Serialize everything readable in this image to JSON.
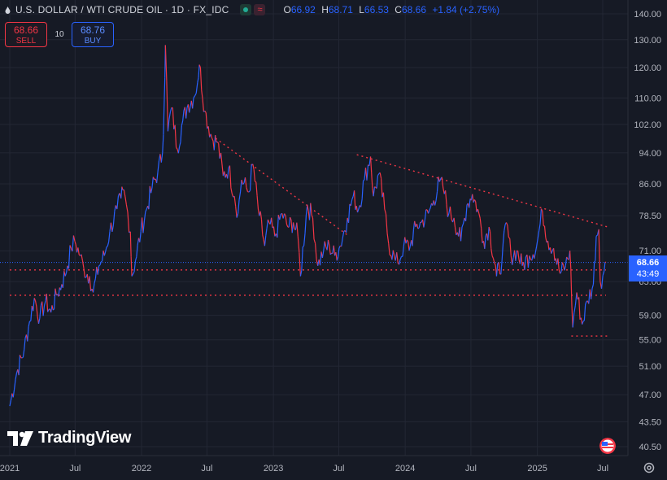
{
  "header": {
    "title": "U.S. DOLLAR / WTI CRUDE OIL · 1D · FX_IDC",
    "ohlc": {
      "o_key": "O",
      "o": "66.92",
      "h_key": "H",
      "h": "68.71",
      "l_key": "L",
      "l": "66.53",
      "c_key": "C",
      "c": "68.66",
      "change": "+1.84 (+2.75%)"
    },
    "status_icon": "market-open-dot-icon",
    "indicator_icon": "wave-icon"
  },
  "trade": {
    "sell_price": "68.66",
    "sell_label": "SELL",
    "spread": "10",
    "buy_price": "68.76",
    "buy_label": "BUY"
  },
  "price_badge": {
    "price": "68.66",
    "countdown": "43:49"
  },
  "logo_text": "TradingView",
  "colors": {
    "background": "#161a25",
    "up": "#2962ff",
    "down": "#f23645",
    "grid": "#232734",
    "axis_text": "#b2b5be",
    "trendline": "#f23645"
  },
  "chart_data": {
    "type": "candlestick-line",
    "y_axis": {
      "scale": "log",
      "ticks": [
        140.0,
        130.0,
        120.0,
        110.0,
        102.0,
        94.0,
        86.0,
        78.5,
        71.0,
        65.0,
        59.0,
        55.0,
        51.0,
        47.0,
        43.5,
        40.5
      ],
      "tick_labels": [
        "140.00",
        "130.00",
        "120.00",
        "110.00",
        "102.00",
        "94.00",
        "86.00",
        "78.50",
        "71.00",
        "65.00",
        "59.00",
        "55.00",
        "51.00",
        "47.00",
        "43.50",
        "40.50"
      ],
      "range": [
        39.5,
        142.0
      ]
    },
    "x_axis": {
      "range": [
        "2021-01-01",
        "2025-07-15"
      ],
      "ticks": [
        "2021-01-01",
        "2021-07-01",
        "2022-01-01",
        "2022-07-01",
        "2023-01-01",
        "2023-07-01",
        "2024-01-01",
        "2024-07-01",
        "2025-01-01",
        "2025-07-01"
      ],
      "tick_labels": [
        "2021",
        "Jul",
        "2022",
        "Jul",
        "2023",
        "Jul",
        "2024",
        "Jul",
        "2025",
        "Jul"
      ]
    },
    "grid": true,
    "series": [
      {
        "points": [
          [
            "2021-01-01",
            45.5
          ],
          [
            "2021-01-20",
            50.0
          ],
          [
            "2021-02-10",
            53.5
          ],
          [
            "2021-02-25",
            58.0
          ],
          [
            "2021-03-10",
            62.0
          ],
          [
            "2021-03-25",
            58.5
          ],
          [
            "2021-04-10",
            61.5
          ],
          [
            "2021-04-25",
            59.5
          ],
          [
            "2021-05-10",
            62.5
          ],
          [
            "2021-05-25",
            64.5
          ],
          [
            "2021-06-10",
            68.0
          ],
          [
            "2021-06-20",
            71.5
          ],
          [
            "2021-06-30",
            73.0
          ],
          [
            "2021-07-15",
            70.0
          ],
          [
            "2021-07-25",
            67.5
          ],
          [
            "2021-08-10",
            66.0
          ],
          [
            "2021-08-20",
            63.0
          ],
          [
            "2021-09-05",
            68.0
          ],
          [
            "2021-09-20",
            70.0
          ],
          [
            "2021-10-05",
            75.0
          ],
          [
            "2021-10-25",
            80.0
          ],
          [
            "2021-11-05",
            82.5
          ],
          [
            "2021-11-10",
            84.5
          ],
          [
            "2021-11-20",
            81.0
          ],
          [
            "2021-12-01",
            75.0
          ],
          [
            "2021-12-05",
            66.0
          ],
          [
            "2021-12-15",
            69.0
          ],
          [
            "2021-12-30",
            75.0
          ],
          [
            "2022-01-15",
            80.0
          ],
          [
            "2022-01-30",
            85.0
          ],
          [
            "2022-02-15",
            89.0
          ],
          [
            "2022-02-28",
            94.0
          ],
          [
            "2022-03-05",
            110.0
          ],
          [
            "2022-03-08",
            128.0
          ],
          [
            "2022-03-15",
            100.0
          ],
          [
            "2022-03-25",
            107.0
          ],
          [
            "2022-04-10",
            95.0
          ],
          [
            "2022-04-25",
            103.0
          ],
          [
            "2022-05-10",
            108.0
          ],
          [
            "2022-05-25",
            110.0
          ],
          [
            "2022-06-05",
            115.0
          ],
          [
            "2022-06-10",
            121.0
          ],
          [
            "2022-06-25",
            106.0
          ],
          [
            "2022-07-15",
            98.0
          ],
          [
            "2022-07-30",
            97.0
          ],
          [
            "2022-08-15",
            88.0
          ],
          [
            "2022-08-30",
            90.0
          ],
          [
            "2022-09-15",
            83.0
          ],
          [
            "2022-09-25",
            79.0
          ],
          [
            "2022-10-05",
            87.0
          ],
          [
            "2022-10-25",
            84.0
          ],
          [
            "2022-11-05",
            91.0
          ],
          [
            "2022-11-20",
            80.0
          ],
          [
            "2022-12-08",
            72.0
          ],
          [
            "2022-12-20",
            77.0
          ],
          [
            "2023-01-05",
            74.0
          ],
          [
            "2023-01-25",
            79.0
          ],
          [
            "2023-02-10",
            76.0
          ],
          [
            "2023-02-25",
            77.0
          ],
          [
            "2023-03-10",
            74.0
          ],
          [
            "2023-03-17",
            66.0
          ],
          [
            "2023-04-05",
            81.0
          ],
          [
            "2023-04-20",
            78.0
          ],
          [
            "2023-05-04",
            68.0
          ],
          [
            "2023-05-20",
            71.0
          ],
          [
            "2023-06-05",
            72.0
          ],
          [
            "2023-06-20",
            70.0
          ],
          [
            "2023-07-05",
            72.0
          ],
          [
            "2023-07-25",
            78.0
          ],
          [
            "2023-08-10",
            83.0
          ],
          [
            "2023-08-25",
            80.0
          ],
          [
            "2023-09-10",
            87.0
          ],
          [
            "2023-09-27",
            93.0
          ],
          [
            "2023-10-05",
            83.0
          ],
          [
            "2023-10-20",
            88.5
          ],
          [
            "2023-11-05",
            80.0
          ],
          [
            "2023-11-16",
            72.5
          ],
          [
            "2023-12-05",
            69.0
          ],
          [
            "2023-12-12",
            68.5
          ],
          [
            "2023-12-28",
            72.0
          ],
          [
            "2024-01-15",
            72.0
          ],
          [
            "2024-01-30",
            76.0
          ],
          [
            "2024-02-15",
            77.0
          ],
          [
            "2024-03-05",
            79.0
          ],
          [
            "2024-03-20",
            82.0
          ],
          [
            "2024-04-05",
            86.5
          ],
          [
            "2024-04-15",
            85.0
          ],
          [
            "2024-05-01",
            79.0
          ],
          [
            "2024-05-15",
            78.0
          ],
          [
            "2024-06-03",
            73.0
          ],
          [
            "2024-06-20",
            81.0
          ],
          [
            "2024-07-05",
            83.5
          ],
          [
            "2024-07-20",
            80.0
          ],
          [
            "2024-08-05",
            73.0
          ],
          [
            "2024-08-20",
            76.0
          ],
          [
            "2024-09-10",
            66.0
          ],
          [
            "2024-09-25",
            69.0
          ],
          [
            "2024-10-07",
            77.0
          ],
          [
            "2024-10-20",
            70.0
          ],
          [
            "2024-11-05",
            71.0
          ],
          [
            "2024-11-20",
            68.0
          ],
          [
            "2024-12-10",
            70.0
          ],
          [
            "2024-12-30",
            72.0
          ],
          [
            "2025-01-15",
            79.5
          ],
          [
            "2025-01-30",
            73.0
          ],
          [
            "2025-02-15",
            71.5
          ],
          [
            "2025-03-05",
            66.5
          ],
          [
            "2025-03-20",
            68.0
          ],
          [
            "2025-04-01",
            71.0
          ],
          [
            "2025-04-09",
            57.0
          ],
          [
            "2025-04-20",
            63.0
          ],
          [
            "2025-05-05",
            57.5
          ],
          [
            "2025-05-20",
            61.5
          ],
          [
            "2025-06-05",
            64.5
          ],
          [
            "2025-06-13",
            74.0
          ],
          [
            "2025-06-20",
            75.5
          ],
          [
            "2025-06-24",
            65.0
          ],
          [
            "2025-07-05",
            67.0
          ],
          [
            "2025-07-10",
            68.66
          ]
        ]
      }
    ],
    "annotations": {
      "horizontal_lines": [
        {
          "y": 67.2,
          "x_start": "2021-01-01",
          "x_end": "2025-07-10"
        },
        {
          "y": 62.5,
          "x_start": "2021-01-01",
          "x_end": "2025-07-10"
        },
        {
          "y": 55.6,
          "x_start": "2025-04-05",
          "x_end": "2025-07-15"
        }
      ],
      "trendlines": [
        {
          "from": [
            "2022-07-25",
            98.0
          ],
          "to": [
            "2023-07-30",
            74.0
          ]
        },
        {
          "from": [
            "2023-08-20",
            93.5
          ],
          "to": [
            "2025-07-15",
            76.0
          ]
        }
      ],
      "current_price_line": 68.66
    }
  }
}
